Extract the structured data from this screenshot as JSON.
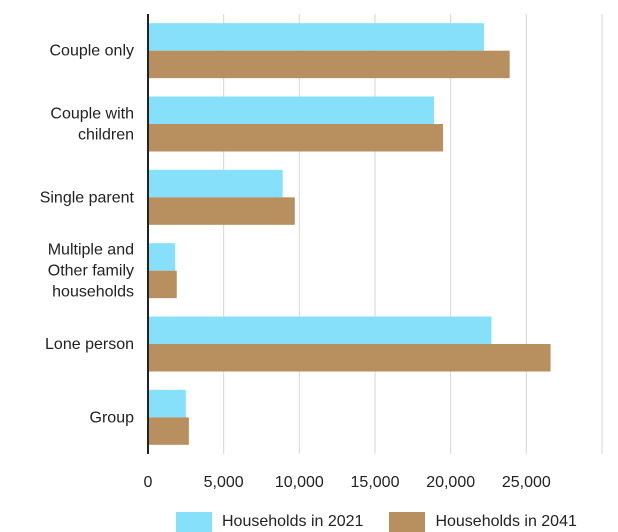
{
  "chart_data": {
    "type": "bar",
    "orientation": "horizontal",
    "categories": [
      [
        "Couple only"
      ],
      [
        "Couple with",
        "children"
      ],
      [
        "Single parent"
      ],
      [
        "Multiple and",
        "Other family",
        "households"
      ],
      [
        "Lone person"
      ],
      [
        "Group"
      ]
    ],
    "series": [
      {
        "name": "Households in 2021",
        "color": "#87e0fa",
        "values": [
          22200,
          18900,
          8900,
          1800,
          22700,
          2500
        ]
      },
      {
        "name": "Households in 2041",
        "color": "#b89060",
        "values": [
          23900,
          19500,
          9700,
          1900,
          26600,
          2700
        ]
      }
    ],
    "xlim": [
      0,
      30000
    ],
    "xticks": [
      0,
      5000,
      10000,
      15000,
      20000,
      25000
    ],
    "xtick_labels": [
      "0",
      "5,000",
      "10,000",
      "15,000",
      "20,000",
      "25,000"
    ],
    "grid": true,
    "legend_position": "bottom"
  }
}
